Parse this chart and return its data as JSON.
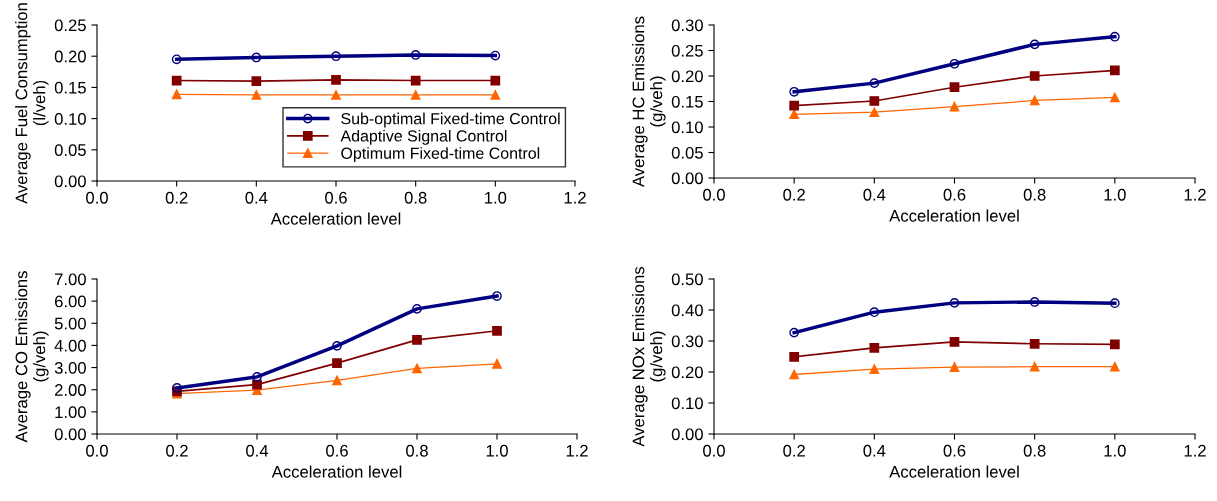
{
  "chart_data": [
    {
      "type": "line",
      "xlabel": "Acceleration level",
      "ylabel": "Average Fuel Consumption\n(l/veh)",
      "x": [
        0.2,
        0.4,
        0.6,
        0.8,
        1.0
      ],
      "xlim": [
        0.0,
        1.2
      ],
      "xticks": [
        {
          "value": 0.0,
          "label": "0.0"
        },
        {
          "value": 0.2,
          "label": "0.2"
        },
        {
          "value": 0.4,
          "label": "0.4"
        },
        {
          "value": 0.6,
          "label": "0.6"
        },
        {
          "value": 0.8,
          "label": "0.8"
        },
        {
          "value": 1.0,
          "label": "1.0"
        },
        {
          "value": 1.2,
          "label": "1.2"
        }
      ],
      "ylim": [
        0,
        0.25
      ],
      "yticks": [
        {
          "value": 0,
          "label": "0.00"
        },
        {
          "value": 0.05,
          "label": "0.05"
        },
        {
          "value": 0.1,
          "label": "0.10"
        },
        {
          "value": 0.15,
          "label": "0.15"
        },
        {
          "value": 0.2,
          "label": "0.20"
        },
        {
          "value": 0.25,
          "label": "0.25"
        }
      ],
      "legend": "bottom right",
      "series": [
        {
          "name": "Sub-optimal Fixed-time Control",
          "color": "#000080",
          "marker": "circle",
          "values": [
            0.195,
            0.198,
            0.2,
            0.202,
            0.201
          ]
        },
        {
          "name": "Adaptive Signal Control",
          "color": "#800000",
          "marker": "square",
          "values": [
            0.161,
            0.16,
            0.162,
            0.161,
            0.161
          ]
        },
        {
          "name": "Optimum Fixed-time Control",
          "color": "#ff6600",
          "marker": "triangle",
          "values": [
            0.139,
            0.138,
            0.138,
            0.138,
            0.138
          ]
        }
      ]
    },
    {
      "type": "line",
      "xlabel": "Acceleration level",
      "ylabel": "Average HC Emissions\n(g/veh)",
      "x": [
        0.2,
        0.4,
        0.6,
        0.8,
        1.0
      ],
      "xlim": [
        0.0,
        1.2
      ],
      "xticks": [
        {
          "value": 0.0,
          "label": "0.0"
        },
        {
          "value": 0.2,
          "label": "0.2"
        },
        {
          "value": 0.4,
          "label": "0.4"
        },
        {
          "value": 0.6,
          "label": "0.6"
        },
        {
          "value": 0.8,
          "label": "0.8"
        },
        {
          "value": 1.0,
          "label": "1.0"
        },
        {
          "value": 1.2,
          "label": "1.2"
        }
      ],
      "ylim": [
        0,
        0.3
      ],
      "yticks": [
        {
          "value": 0,
          "label": "0.00"
        },
        {
          "value": 0.05,
          "label": "0.05"
        },
        {
          "value": 0.1,
          "label": "0.10"
        },
        {
          "value": 0.15,
          "label": "0.15"
        },
        {
          "value": 0.2,
          "label": "0.20"
        },
        {
          "value": 0.25,
          "label": "0.25"
        },
        {
          "value": 0.3,
          "label": "0.30"
        }
      ],
      "series": [
        {
          "color": "#000080",
          "marker": "circle",
          "values": [
            0.169,
            0.186,
            0.224,
            0.262,
            0.277
          ]
        },
        {
          "color": "#800000",
          "marker": "square",
          "values": [
            0.142,
            0.151,
            0.178,
            0.2,
            0.211
          ]
        },
        {
          "color": "#ff6600",
          "marker": "triangle",
          "values": [
            0.125,
            0.129,
            0.14,
            0.152,
            0.158
          ]
        }
      ]
    },
    {
      "type": "line",
      "xlabel": "Acceleration level",
      "ylabel": "Average CO Emissions\n(g/veh)",
      "x": [
        0.2,
        0.4,
        0.6,
        0.8,
        1.0
      ],
      "xlim": [
        0.0,
        1.2
      ],
      "xticks": [
        {
          "value": 0.0,
          "label": "0.0"
        },
        {
          "value": 0.2,
          "label": "0.2"
        },
        {
          "value": 0.4,
          "label": "0.4"
        },
        {
          "value": 0.6,
          "label": "0.6"
        },
        {
          "value": 0.8,
          "label": "0.8"
        },
        {
          "value": 1.0,
          "label": "1.0"
        },
        {
          "value": 1.2,
          "label": "1.2"
        }
      ],
      "ylim": [
        0,
        7
      ],
      "yticks": [
        {
          "value": 0,
          "label": "0.00"
        },
        {
          "value": 1,
          "label": "1.00"
        },
        {
          "value": 2,
          "label": "2.00"
        },
        {
          "value": 3,
          "label": "3.00"
        },
        {
          "value": 4,
          "label": "4.00"
        },
        {
          "value": 5,
          "label": "5.00"
        },
        {
          "value": 6,
          "label": "6.00"
        },
        {
          "value": 7,
          "label": "7.00"
        }
      ],
      "series": [
        {
          "color": "#000080",
          "marker": "circle",
          "values": [
            2.08,
            2.58,
            3.98,
            5.65,
            6.23
          ]
        },
        {
          "color": "#800000",
          "marker": "square",
          "values": [
            1.93,
            2.23,
            3.2,
            4.25,
            4.66
          ]
        },
        {
          "color": "#ff6600",
          "marker": "triangle",
          "values": [
            1.82,
            1.98,
            2.42,
            2.96,
            3.17
          ]
        }
      ]
    },
    {
      "type": "line",
      "xlabel": "Acceleration level",
      "ylabel": "Average NOx Emissions\n(g/veh)",
      "x": [
        0.2,
        0.4,
        0.6,
        0.8,
        1.0
      ],
      "xlim": [
        0.0,
        1.2
      ],
      "xticks": [
        {
          "value": 0.0,
          "label": "0.0"
        },
        {
          "value": 0.2,
          "label": "0.2"
        },
        {
          "value": 0.4,
          "label": "0.4"
        },
        {
          "value": 0.6,
          "label": "0.6"
        },
        {
          "value": 0.8,
          "label": "0.8"
        },
        {
          "value": 1.0,
          "label": "1.0"
        },
        {
          "value": 1.2,
          "label": "1.2"
        }
      ],
      "ylim": [
        0,
        0.5
      ],
      "yticks": [
        {
          "value": 0,
          "label": "0.00"
        },
        {
          "value": 0.1,
          "label": "0.10"
        },
        {
          "value": 0.2,
          "label": "0.20"
        },
        {
          "value": 0.3,
          "label": "0.30"
        },
        {
          "value": 0.4,
          "label": "0.40"
        },
        {
          "value": 0.5,
          "label": "0.50"
        }
      ],
      "series": [
        {
          "color": "#000080",
          "marker": "circle",
          "values": [
            0.327,
            0.393,
            0.423,
            0.426,
            0.422
          ]
        },
        {
          "color": "#800000",
          "marker": "square",
          "values": [
            0.249,
            0.278,
            0.297,
            0.291,
            0.289
          ]
        },
        {
          "color": "#ff6600",
          "marker": "triangle",
          "values": [
            0.192,
            0.209,
            0.216,
            0.217,
            0.217
          ]
        }
      ]
    }
  ]
}
